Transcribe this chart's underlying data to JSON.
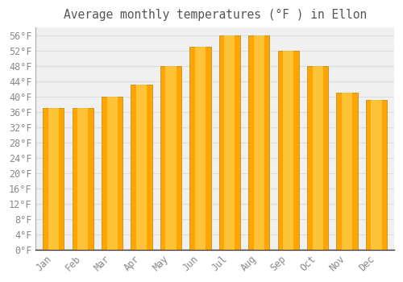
{
  "title": "Average monthly temperatures (°F ) in Ellon",
  "months": [
    "Jan",
    "Feb",
    "Mar",
    "Apr",
    "May",
    "Jun",
    "Jul",
    "Aug",
    "Sep",
    "Oct",
    "Nov",
    "Dec"
  ],
  "values": [
    37,
    37,
    40,
    43,
    48,
    53,
    56,
    56,
    52,
    48,
    41,
    39
  ],
  "bar_color_main": "#FFA500",
  "bar_color_light": "#FFD050",
  "background_color": "#FFFFFF",
  "plot_bg_color": "#F0F0F0",
  "grid_color": "#DDDDDD",
  "ylim": [
    0,
    58
  ],
  "ytick_step": 4,
  "title_fontsize": 10.5,
  "tick_fontsize": 8.5,
  "font_family": "monospace",
  "tick_color": "#888888",
  "title_color": "#555555"
}
